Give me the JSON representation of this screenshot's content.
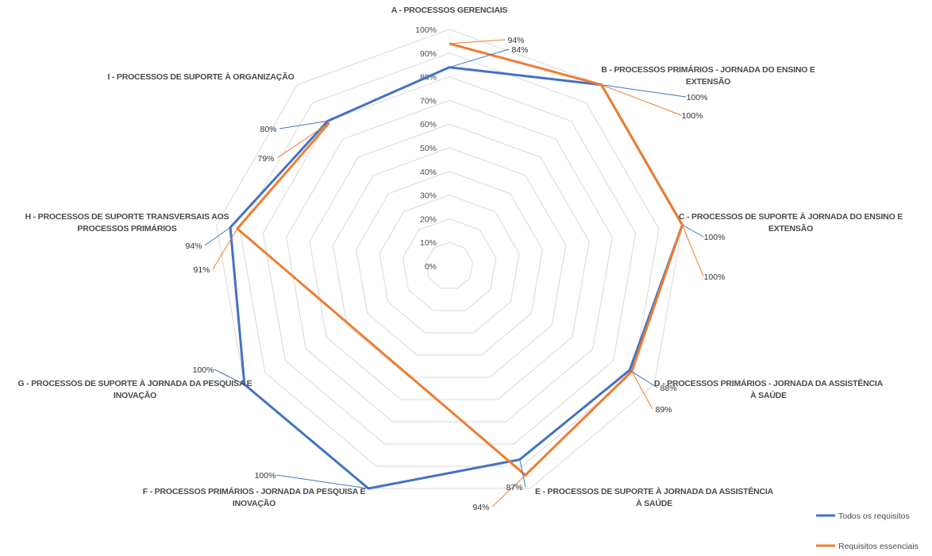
{
  "chart_data": {
    "type": "radar",
    "categories": [
      "A - PROCESSOS GERENCIAIS",
      "B - PROCESSOS PRIMÁRIOS - JORNADA DO ENSINO E EXTENSÃO",
      "C - PROCESSOS DE SUPORTE À JORNADA DO ENSINO E EXTENSÃO",
      "D - PROCESSOS PRIMÁRIOS - JORNADA DA ASSISTÊNCIA À SAÚDE",
      "E - PROCESSOS DE SUPORTE À JORNADA DA ASSISTÊNCIA À SAÚDE",
      "F - PROCESSOS PRIMÁRIOS - JORNADA DA PESQUISA E INOVAÇÃO",
      "G - PROCESSOS DE SUPORTE À JORNADA DA PESQUISA E INOVAÇÃO",
      "H - PROCESSOS DE SUPORTE TRANSVERSAIS AOS PROCESSOS PRIMÁRIOS",
      "I - PROCESSOS DE SUPORTE À ORGANIZAÇÃO"
    ],
    "series": [
      {
        "name": "Todos os requisitos",
        "color": "#4472c4",
        "values": [
          84,
          100,
          100,
          88,
          87,
          100,
          100,
          94,
          80
        ]
      },
      {
        "name": "Requisitos essenciais",
        "color": "#ed7d31",
        "values": [
          94,
          100,
          100,
          89,
          94,
          0,
          0,
          91,
          79
        ]
      }
    ],
    "data_labels": [
      [
        "84%",
        "100%",
        "100%",
        "88%",
        "87%",
        "100%",
        "100%",
        "94%",
        "80%"
      ],
      [
        "94%",
        "100%",
        "100%",
        "89%",
        "94%",
        "",
        "",
        "91%",
        "79%"
      ]
    ],
    "tick_labels": [
      "0%",
      "10%",
      "20%",
      "30%",
      "40%",
      "50%",
      "60%",
      "70%",
      "80%",
      "90%",
      "100%"
    ],
    "range": [
      0,
      100
    ],
    "grid": true,
    "legend_position": "bottom-right",
    "grid_color": "#d9d9d9"
  }
}
